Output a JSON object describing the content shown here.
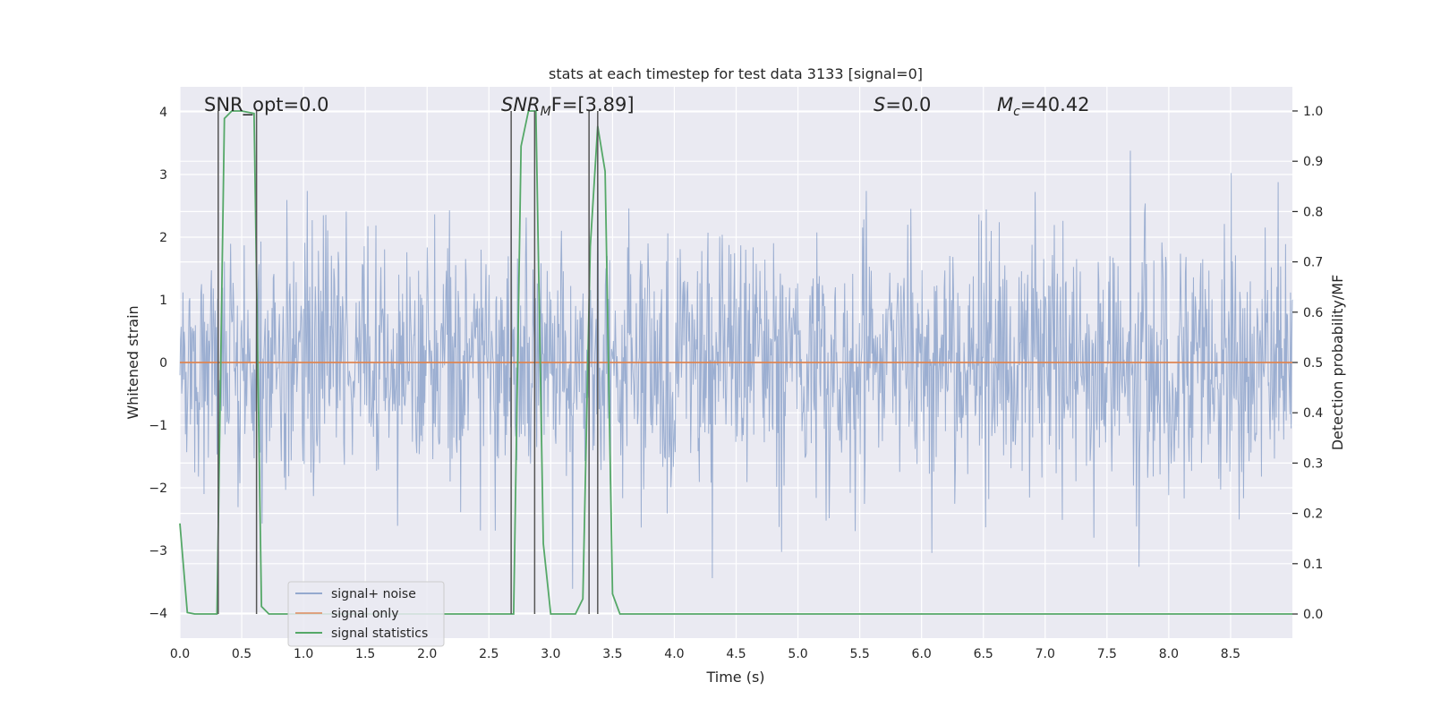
{
  "chart_data": {
    "type": "line",
    "title": "stats at each timestep for test data 3133 [signal=0]",
    "xlabel": "Time (s)",
    "ylabel": "Whitened strain",
    "y2label": "Detection probability/MF",
    "xlim": [
      0.0,
      9.0
    ],
    "ylim": [
      -4.4,
      4.4
    ],
    "y2lim": [
      -0.048,
      1.048
    ],
    "x_ticks": [
      0.0,
      0.5,
      1.0,
      1.5,
      2.0,
      2.5,
      3.0,
      3.5,
      4.0,
      4.5,
      5.0,
      5.5,
      6.0,
      6.5,
      7.0,
      7.5,
      8.0,
      8.5
    ],
    "x_tick_labels": [
      "0.0",
      "0.5",
      "1.0",
      "1.5",
      "2.0",
      "2.5",
      "3.0",
      "3.5",
      "4.0",
      "4.5",
      "5.0",
      "5.5",
      "6.0",
      "6.5",
      "7.0",
      "7.5",
      "8.0",
      "8.5"
    ],
    "y_ticks": [
      -4,
      -3,
      -2,
      -1,
      0,
      1,
      2,
      3,
      4
    ],
    "y_tick_labels": [
      "−4",
      "−3",
      "−2",
      "−1",
      "0",
      "1",
      "2",
      "3",
      "4"
    ],
    "y2_ticks": [
      0.0,
      0.1,
      0.2,
      0.3,
      0.4,
      0.5,
      0.6,
      0.7,
      0.8,
      0.9,
      1.0
    ],
    "y2_tick_labels": [
      "0.0",
      "0.1",
      "0.2",
      "0.3",
      "0.4",
      "0.5",
      "0.6",
      "0.7",
      "0.8",
      "0.9",
      "1.0"
    ],
    "grid": true,
    "legend_position": "lower-left",
    "annotations": {
      "snr_opt": "SNR_opt=0.0",
      "snr_mf_math": "SNR",
      "snr_mf_sub": "M",
      "snr_mf_rest": "F=[3.89]",
      "s_math": "S",
      "s_rest": "=0.0",
      "mc_math": "M",
      "mc_sub": "c",
      "mc_rest": "=40.42"
    },
    "series": [
      {
        "name": "signal+ noise",
        "color": "#4c72b0",
        "axis": "left",
        "kind": "noise",
        "count": 1800,
        "typical_range": [
          -2.0,
          2.0
        ],
        "max": 4.0,
        "min": -3.8
      },
      {
        "name": "signal only",
        "color": "#dd8452",
        "axis": "left",
        "x": [
          0.0,
          9.0
        ],
        "y": [
          0.0,
          0.0
        ]
      },
      {
        "name": "signal statistics",
        "color": "#55a868",
        "axis": "right",
        "x": [
          0.0,
          0.06,
          0.12,
          0.3,
          0.36,
          0.42,
          0.5,
          0.6,
          0.66,
          0.72,
          0.78,
          2.7,
          2.76,
          2.82,
          2.88,
          2.94,
          3.0,
          3.2,
          3.26,
          3.32,
          3.38,
          3.44,
          3.5,
          3.56,
          9.0
        ],
        "y": [
          0.18,
          0.003,
          0.0,
          0.0,
          0.985,
          1.0,
          1.0,
          0.995,
          0.015,
          0.0,
          0.0,
          0.0,
          0.93,
          1.0,
          1.0,
          0.14,
          0.0,
          0.0,
          0.03,
          0.73,
          0.97,
          0.88,
          0.04,
          0.0,
          0.0
        ]
      }
    ],
    "vertical_lines": [
      0.31,
      0.62,
      2.68,
      2.87,
      3.31,
      3.38
    ],
    "vertical_lines_color": "#555555"
  }
}
